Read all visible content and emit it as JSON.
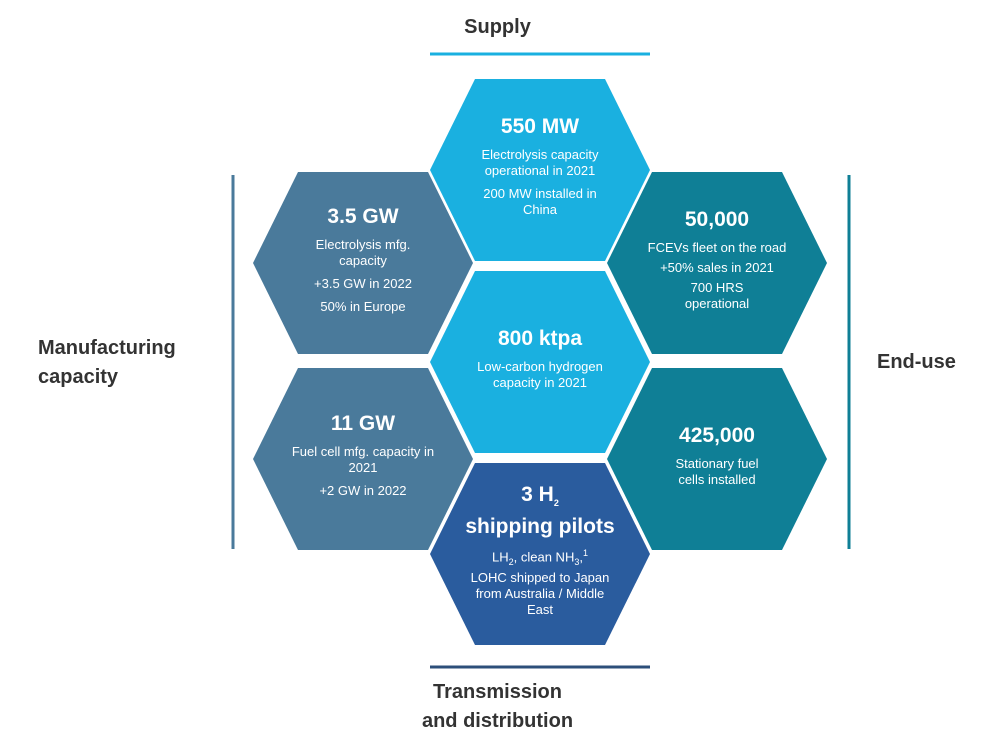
{
  "labels": {
    "supply": "Supply",
    "transmission": [
      "Transmission",
      "and distribution"
    ],
    "manufacturing": [
      "Manufacturing",
      "capacity"
    ],
    "end_use": "End-use"
  },
  "hexagons": [
    {
      "value": "550 MW",
      "lines": [
        "Electrolysis capacity operational in 2021",
        "200 MW installed in China"
      ]
    },
    {
      "value": "3.5 GW",
      "lines": [
        "Electrolysis mfg. capacity",
        "+3.5 GW in 2022",
        "50% in Europe"
      ]
    },
    {
      "value": "50,000",
      "lines": [
        "FCEVs fleet on the road",
        "+50% sales in 2021",
        "700 HRS operational"
      ]
    },
    {
      "value": "800 ktpa",
      "lines": [
        "Low-carbon hydrogen capacity in 2021"
      ]
    },
    {
      "value": "11 GW",
      "lines": [
        "Fuel cell mfg. capacity in 2021",
        "+2 GW in 2022"
      ]
    },
    {
      "value": "425,000",
      "lines": [
        "Stationary fuel cells installed"
      ]
    },
    {
      "value": [
        "3 H",
        "2",
        "shipping pilots"
      ],
      "lines": [
        "LH",
        "2",
        ", clean NH",
        "3",
        ",",
        "1",
        "LOHC shipped to Japan from Australia / Middle East"
      ]
    }
  ]
}
